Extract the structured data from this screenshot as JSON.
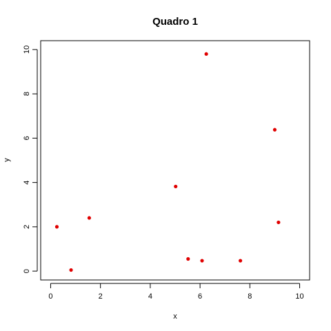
{
  "chart_data": {
    "type": "scatter",
    "title": "Quadro 1",
    "xlabel": "x",
    "ylabel": "y",
    "xlim": [
      -0.4,
      10.4
    ],
    "ylim": [
      -0.4,
      10.4
    ],
    "x_ticks": [
      0,
      2,
      4,
      6,
      8,
      10
    ],
    "y_ticks": [
      0,
      2,
      4,
      6,
      8,
      10
    ],
    "grid": false,
    "point_color": "#e00000",
    "series": [
      {
        "points": [
          {
            "x": 0.25,
            "y": 2.0
          },
          {
            "x": 0.82,
            "y": 0.05
          },
          {
            "x": 1.55,
            "y": 2.4
          },
          {
            "x": 5.02,
            "y": 3.82
          },
          {
            "x": 5.52,
            "y": 0.55
          },
          {
            "x": 6.08,
            "y": 0.47
          },
          {
            "x": 6.25,
            "y": 9.8
          },
          {
            "x": 7.62,
            "y": 0.47
          },
          {
            "x": 9.0,
            "y": 6.38
          },
          {
            "x": 9.15,
            "y": 2.2
          }
        ]
      }
    ]
  }
}
